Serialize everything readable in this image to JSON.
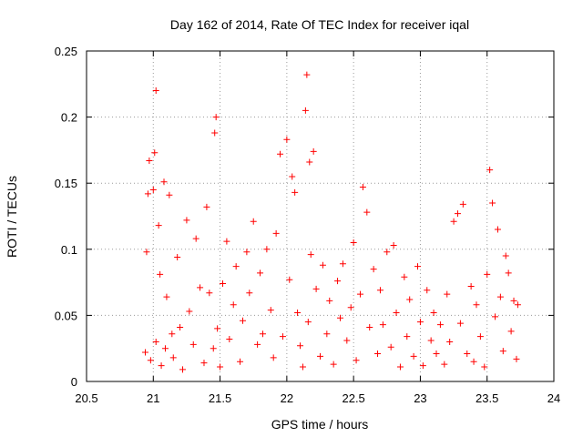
{
  "chart_data": {
    "type": "scatter",
    "title": "Day 162 of 2014, Rate Of TEC Index for receiver iqal",
    "xlabel": "GPS time / hours",
    "ylabel": "ROTI / TECUs",
    "xlim": [
      20.5,
      24
    ],
    "ylim": [
      0,
      0.25
    ],
    "x_ticks": [
      20.5,
      21,
      21.5,
      22,
      22.5,
      23,
      23.5,
      24
    ],
    "x_tick_labels": [
      "20.5",
      "21",
      "21.5",
      "22",
      "22.5",
      "23",
      "23.5",
      "24"
    ],
    "y_ticks": [
      0,
      0.05,
      0.1,
      0.15,
      0.2,
      0.25
    ],
    "y_tick_labels": [
      "0",
      "0.05",
      "0.1",
      "0.15",
      "0.2",
      "0.25"
    ],
    "grid": true,
    "marker": "+",
    "color": "#ff0000",
    "series": [
      {
        "name": "ROTI",
        "x": [
          20.94,
          20.95,
          20.96,
          20.97,
          20.98,
          21.0,
          21.01,
          21.02,
          21.02,
          21.04,
          21.05,
          21.06,
          21.08,
          21.09,
          21.1,
          21.12,
          21.14,
          21.15,
          21.18,
          21.2,
          21.22,
          21.25,
          21.27,
          21.3,
          21.32,
          21.35,
          21.38,
          21.4,
          21.42,
          21.45,
          21.46,
          21.47,
          21.48,
          21.5,
          21.52,
          21.55,
          21.57,
          21.6,
          21.62,
          21.65,
          21.67,
          21.7,
          21.72,
          21.75,
          21.78,
          21.8,
          21.82,
          21.85,
          21.88,
          21.9,
          21.92,
          21.95,
          21.97,
          22.0,
          22.02,
          22.04,
          22.06,
          22.08,
          22.1,
          22.12,
          22.14,
          22.15,
          22.16,
          22.17,
          22.18,
          22.2,
          22.22,
          22.25,
          22.27,
          22.3,
          22.32,
          22.35,
          22.38,
          22.4,
          22.42,
          22.45,
          22.48,
          22.5,
          22.52,
          22.55,
          22.57,
          22.6,
          22.62,
          22.65,
          22.68,
          22.7,
          22.72,
          22.75,
          22.78,
          22.8,
          22.82,
          22.85,
          22.88,
          22.9,
          22.92,
          22.95,
          22.98,
          23.0,
          23.02,
          23.05,
          23.08,
          23.1,
          23.12,
          23.15,
          23.18,
          23.2,
          23.22,
          23.25,
          23.28,
          23.3,
          23.32,
          23.35,
          23.38,
          23.4,
          23.42,
          23.45,
          23.48,
          23.5,
          23.52,
          23.54,
          23.56,
          23.58,
          23.6,
          23.62,
          23.64,
          23.66,
          23.68,
          23.7,
          23.72,
          23.73
        ],
        "y": [
          0.022,
          0.098,
          0.142,
          0.167,
          0.016,
          0.145,
          0.173,
          0.22,
          0.03,
          0.118,
          0.081,
          0.012,
          0.151,
          0.025,
          0.064,
          0.141,
          0.036,
          0.018,
          0.094,
          0.041,
          0.009,
          0.122,
          0.053,
          0.028,
          0.108,
          0.071,
          0.014,
          0.132,
          0.067,
          0.025,
          0.188,
          0.2,
          0.04,
          0.011,
          0.074,
          0.106,
          0.032,
          0.058,
          0.087,
          0.015,
          0.046,
          0.098,
          0.067,
          0.121,
          0.028,
          0.082,
          0.036,
          0.1,
          0.054,
          0.018,
          0.112,
          0.172,
          0.034,
          0.183,
          0.077,
          0.155,
          0.143,
          0.052,
          0.027,
          0.011,
          0.205,
          0.232,
          0.045,
          0.166,
          0.096,
          0.174,
          0.07,
          0.019,
          0.088,
          0.036,
          0.061,
          0.013,
          0.076,
          0.048,
          0.089,
          0.031,
          0.056,
          0.105,
          0.016,
          0.066,
          0.147,
          0.128,
          0.041,
          0.085,
          0.021,
          0.069,
          0.043,
          0.098,
          0.026,
          0.103,
          0.052,
          0.011,
          0.079,
          0.034,
          0.062,
          0.019,
          0.087,
          0.045,
          0.012,
          0.069,
          0.031,
          0.052,
          0.021,
          0.043,
          0.013,
          0.066,
          0.03,
          0.121,
          0.127,
          0.044,
          0.134,
          0.021,
          0.072,
          0.015,
          0.058,
          0.034,
          0.011,
          0.081,
          0.16,
          0.135,
          0.049,
          0.115,
          0.064,
          0.023,
          0.095,
          0.082,
          0.038,
          0.061,
          0.017,
          0.058
        ]
      }
    ]
  }
}
